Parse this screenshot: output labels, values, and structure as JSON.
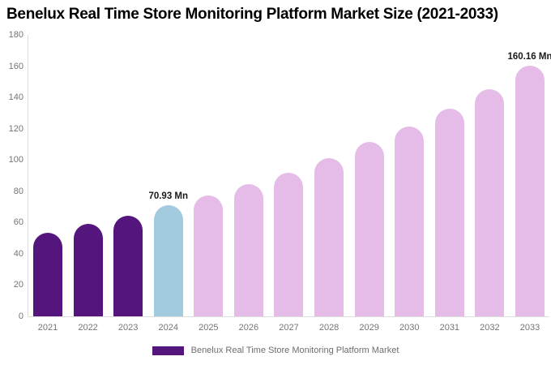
{
  "title": "Benelux Real Time Store Monitoring Platform Market Size (2021-2033)",
  "legend": {
    "label": "Benelux Real Time Store Monitoring Platform Market",
    "swatch_color": "#54157D"
  },
  "chart_data": {
    "type": "bar",
    "title": "Benelux Real Time Store Monitoring Platform Market Size (2021-2033)",
    "categories": [
      "2021",
      "2022",
      "2023",
      "2024",
      "2025",
      "2026",
      "2027",
      "2028",
      "2029",
      "2030",
      "2031",
      "2032",
      "2033"
    ],
    "series": [
      {
        "name": "Benelux Real Time Store Monitoring Platform Market",
        "values": [
          53.5,
          58.9,
          64.4,
          70.93,
          77.3,
          84.7,
          92.0,
          101.4,
          111.3,
          121.4,
          132.6,
          145.1,
          160.16
        ]
      }
    ],
    "value_unit": "Mn",
    "xlabel": "",
    "ylabel": "",
    "ylim": [
      0,
      180
    ],
    "yticks": [
      "0",
      "20",
      "40",
      "60",
      "80",
      "100",
      "120",
      "140",
      "160",
      "180"
    ],
    "grid": false,
    "legend_position": "bottom",
    "bar_roles": [
      "historical",
      "historical",
      "historical",
      "current",
      "forecast",
      "forecast",
      "forecast",
      "forecast",
      "forecast",
      "forecast",
      "forecast",
      "forecast",
      "forecast"
    ],
    "colors": {
      "historical": "#54157D",
      "current": "#A3CBE0",
      "forecast": "#E5BCE8",
      "axis_line": "#dcdcdc",
      "tick_text": "#757575",
      "annotation_text": "#1a1a1a"
    },
    "annotations": [
      {
        "category": "2024",
        "text": "70.93 Mn"
      },
      {
        "category": "2033",
        "text": "160.16 Mn"
      }
    ]
  }
}
